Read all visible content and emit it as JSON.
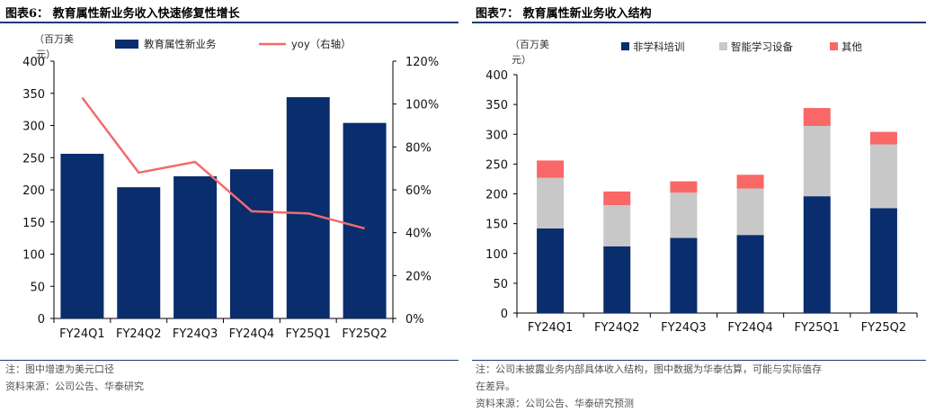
{
  "chart_data": [
    {
      "type": "bar",
      "figure_label": "图表6：",
      "title": "教育属性新业务收入快速修复性增长",
      "unit_label_line1": "（百万美",
      "unit_label_line2": "元）",
      "categories": [
        "FY24Q1",
        "FY24Q2",
        "FY24Q3",
        "FY24Q4",
        "FY25Q1",
        "FY25Q2"
      ],
      "series": [
        {
          "name": "教育属性新业务",
          "kind": "bar",
          "axis": "left",
          "color": "#0a2d6e",
          "values": [
            256,
            204,
            221,
            232,
            344,
            304
          ]
        },
        {
          "name": "yoy（右轴）",
          "kind": "line",
          "axis": "right",
          "color": "#f26b6b",
          "values": [
            103,
            68,
            73,
            50,
            49,
            42
          ]
        }
      ],
      "ylim": [
        0,
        400
      ],
      "yticks": [
        "0",
        "50",
        "100",
        "150",
        "200",
        "250",
        "300",
        "350",
        "400"
      ],
      "y2lim": [
        0,
        120
      ],
      "y2ticks": [
        "0%",
        "20%",
        "40%",
        "60%",
        "80%",
        "100%",
        "120%"
      ],
      "notes": [
        "注：图中增速为美元口径",
        "资料来源：公司公告、华泰研究"
      ]
    },
    {
      "type": "bar",
      "stacked": true,
      "figure_label": "图表7：",
      "title": "教育属性新业务收入结构",
      "unit_label_line1": "（百万美",
      "unit_label_line2": "元）",
      "categories": [
        "FY24Q1",
        "FY24Q2",
        "FY24Q3",
        "FY24Q4",
        "FY25Q1",
        "FY25Q2"
      ],
      "series": [
        {
          "name": "非学科培训",
          "color": "#0a2d6e",
          "values": [
            142,
            112,
            126,
            131,
            196,
            176
          ]
        },
        {
          "name": "智能学习设备",
          "color": "#c8c8c8",
          "values": [
            85,
            69,
            76,
            78,
            118,
            107
          ]
        },
        {
          "name": "其他",
          "color": "#f96767",
          "values": [
            29,
            23,
            19,
            23,
            30,
            21
          ]
        }
      ],
      "ylim": [
        0,
        400
      ],
      "yticks": [
        "0",
        "50",
        "100",
        "150",
        "200",
        "250",
        "300",
        "350",
        "400"
      ],
      "notes": [
        "注：公司未披露业务内部具体收入结构，图中数据为华泰估算，可能与实际值存",
        "在差异。",
        "资料来源：公司公告、华泰研究预测"
      ]
    }
  ]
}
